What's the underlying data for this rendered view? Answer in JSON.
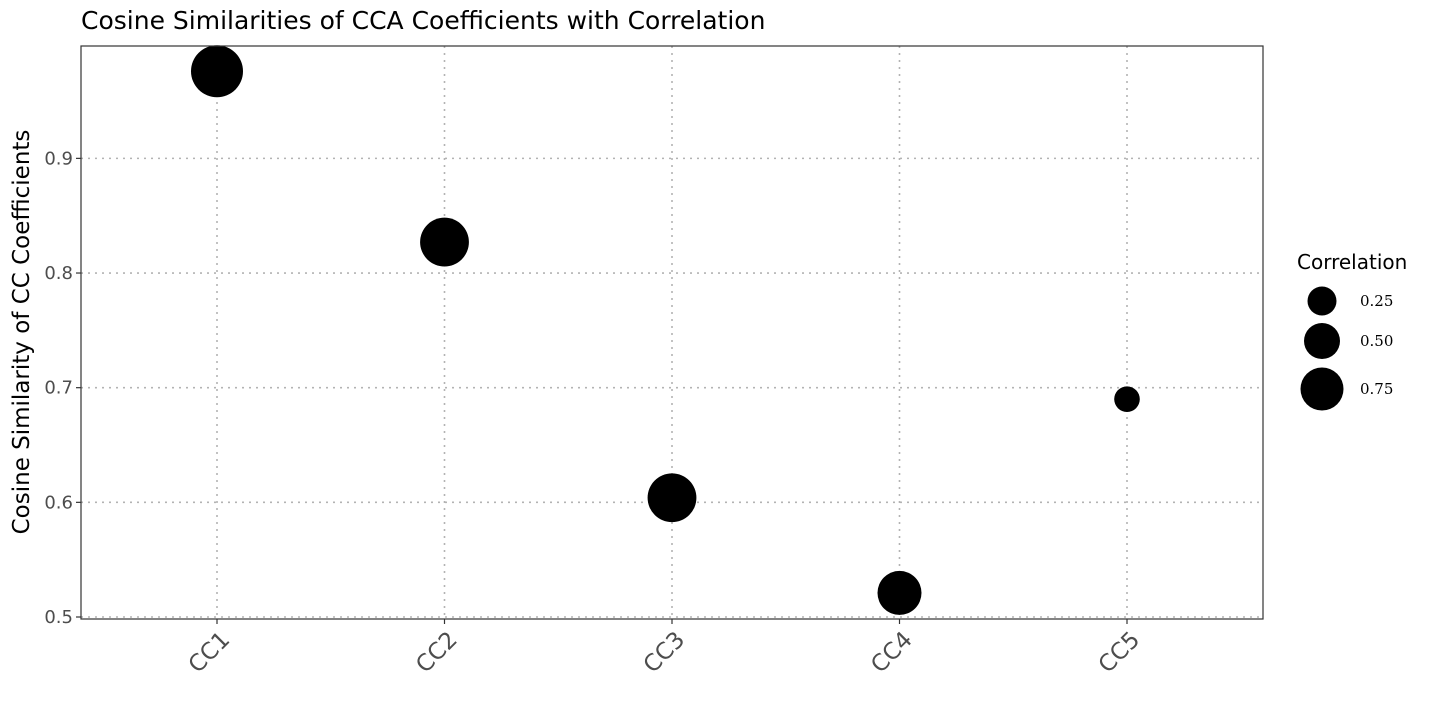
{
  "chart_data": {
    "type": "scatter",
    "title": "Cosine Similarities of CCA Coefficients with Correlation",
    "xlabel": "",
    "ylabel": "Cosine Similarity of CC Coefficients",
    "categories": [
      "CC1",
      "CC2",
      "CC3",
      "CC4",
      "CC5"
    ],
    "y": [
      0.976,
      0.827,
      0.604,
      0.521,
      0.69
    ],
    "size": [
      0.8,
      0.72,
      0.72,
      0.6,
      0.14
    ],
    "ylim": [
      0.5,
      0.998
    ],
    "yticks": [
      0.5,
      0.6,
      0.7,
      0.8,
      0.9
    ],
    "ytick_labels": [
      "0.5",
      "0.6",
      "0.7",
      "0.8",
      "0.9"
    ],
    "grid": true,
    "legend": {
      "title": "Correlation",
      "placement": "right",
      "values": [
        0.25,
        0.5,
        0.75
      ],
      "labels": [
        "0.25",
        "0.50",
        "0.75"
      ]
    },
    "point_color": "#000000"
  }
}
